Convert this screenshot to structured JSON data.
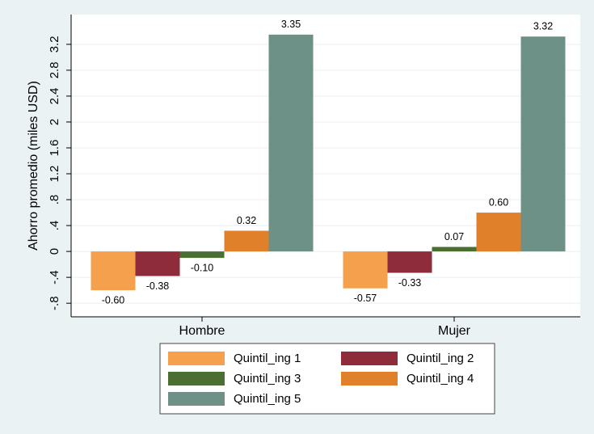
{
  "chart_data": {
    "type": "bar",
    "y_label": "Ahorro promedio (miles USD)",
    "categories": [
      "Hombre",
      "Mujer"
    ],
    "series": [
      {
        "name": "Quintil_ing 1",
        "color": "#f5a04c",
        "values": [
          -0.6,
          -0.57
        ],
        "value_labels": [
          "-0.60",
          "-0.57"
        ]
      },
      {
        "name": "Quintil_ing 2",
        "color": "#8f2c3b",
        "values": [
          -0.38,
          -0.33
        ],
        "value_labels": [
          "-0.38",
          "-0.33"
        ]
      },
      {
        "name": "Quintil_ing 3",
        "color": "#4b6e33",
        "values": [
          -0.1,
          0.07
        ],
        "value_labels": [
          "-0.10",
          "0.07"
        ]
      },
      {
        "name": "Quintil_ing 4",
        "color": "#e0802a",
        "values": [
          0.32,
          0.6
        ],
        "value_labels": [
          "0.32",
          "0.60"
        ]
      },
      {
        "name": "Quintil_ing 5",
        "color": "#6d9087",
        "values": [
          3.35,
          3.32
        ],
        "value_labels": [
          "3.35",
          "3.32"
        ]
      }
    ],
    "ylim": [
      -1.01,
      3.66
    ],
    "yticks": [
      {
        "value": -0.8,
        "label": "-.8"
      },
      {
        "value": -0.4,
        "label": "-.4"
      },
      0,
      {
        "value": 0.4,
        "label": ".4"
      },
      {
        "value": 0.8,
        "label": ".8"
      },
      1.2,
      1.6,
      2,
      2.4,
      2.8,
      3.2
    ],
    "grid": true,
    "legend": "bottom"
  }
}
